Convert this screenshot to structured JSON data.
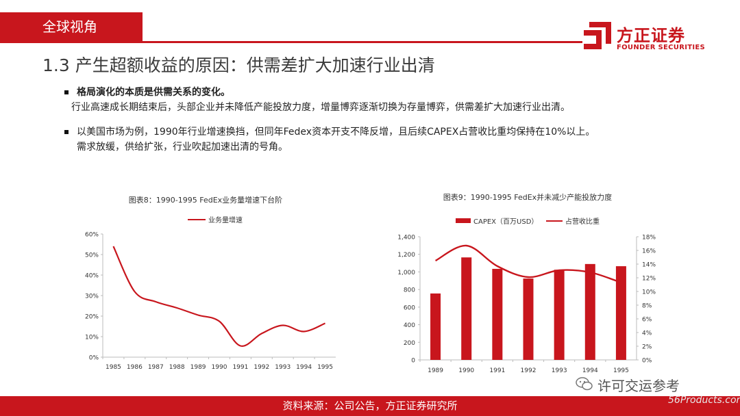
{
  "section_tag": "全球视角",
  "logo": {
    "cn": "方正证券",
    "en": "FOUNDER SECURITIES"
  },
  "page_title": "1.3 产生超额收益的原因：供需差扩大加速行业出清",
  "bullets": [
    {
      "bold": "格局演化的本质是供需关系的变化。",
      "text": "行业高速成长期结束后，头部企业并未降低产能投放力度，增量博弈逐渐切换为存量博弈，供需差扩大加速行业出清。"
    },
    {
      "text": "以美国市场为例，1990年行业增速换挡，但同年Fedex资本开支不降反增，且后续CAPEX占营收比重均保持在10%以上。",
      "text2": "需求放缓，供给扩张，行业吹起加速出清的号角。"
    }
  ],
  "footer": "资料来源：公司公告，方正证券研究所",
  "watermark": {
    "wechat": "许可交运参考",
    "site": "56Products.com"
  },
  "chart_data": [
    {
      "type": "line",
      "title": "图表8：1990-1995  FedEx业务量增速下台阶",
      "x": [
        "1985",
        "1986",
        "1987",
        "1988",
        "1989",
        "1990",
        "1991",
        "1992",
        "1993",
        "1994",
        "1995"
      ],
      "series": [
        {
          "name": "业务量增速",
          "color": "#c8161d",
          "values": [
            0.54,
            0.32,
            0.27,
            0.24,
            0.205,
            0.175,
            0.055,
            0.115,
            0.155,
            0.125,
            0.165
          ]
        }
      ],
      "ylim": [
        0,
        0.6
      ],
      "yticks": [
        "0%",
        "10%",
        "20%",
        "30%",
        "40%",
        "50%",
        "60%"
      ],
      "legend": "top"
    },
    {
      "type": "bar",
      "title": "图表9：1990-1995  FedEx并未减少产能投放力度",
      "categories": [
        "1989",
        "1990",
        "1991",
        "1992",
        "1993",
        "1994",
        "1995"
      ],
      "series": [
        {
          "name": "CAPEX（百万USD）",
          "type": "bar",
          "axis": "left",
          "color": "#c8161d",
          "values": [
            755,
            1165,
            1035,
            925,
            1025,
            1090,
            1065
          ]
        },
        {
          "name": "占营收比重",
          "type": "line",
          "axis": "right",
          "color": "#c8161d",
          "values": [
            0.145,
            0.167,
            0.137,
            0.121,
            0.131,
            0.128,
            0.113
          ]
        }
      ],
      "ylim": [
        0,
        1400
      ],
      "yticks": [
        "0",
        "200",
        "400",
        "600",
        "800",
        "1,000",
        "1,200",
        "1,400"
      ],
      "y2lim": [
        0,
        0.18
      ],
      "y2ticks": [
        "0%",
        "2%",
        "4%",
        "6%",
        "8%",
        "10%",
        "12%",
        "14%",
        "16%",
        "18%"
      ],
      "legend": "top"
    }
  ]
}
